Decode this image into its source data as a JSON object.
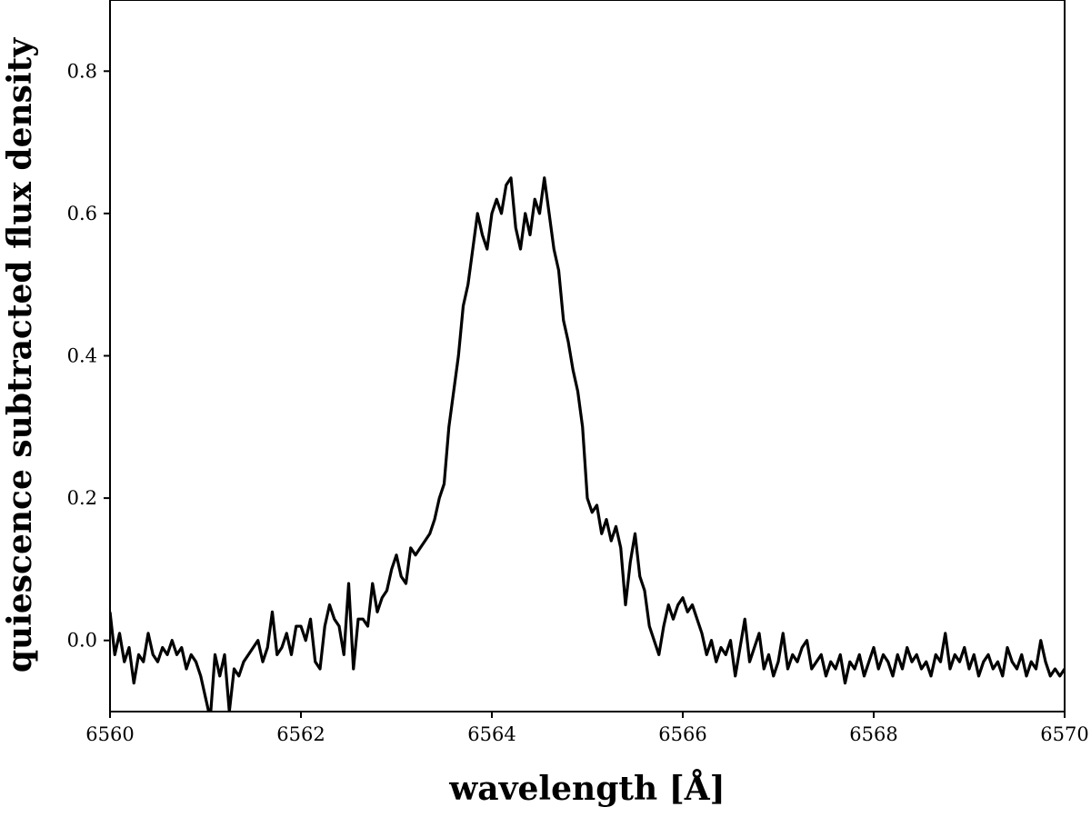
{
  "chart_data": {
    "type": "line",
    "title": "",
    "xlabel": "wavelength [Å]",
    "ylabel": "quiescence subtracted flux density",
    "xlim": [
      6560,
      6570
    ],
    "ylim": [
      -0.1,
      0.9
    ],
    "x_ticks": [
      6560,
      6562,
      6564,
      6566,
      6568,
      6570
    ],
    "x_tick_labels": [
      "6560",
      "6562",
      "6564",
      "6566",
      "6568",
      "6570"
    ],
    "y_ticks": [
      0.0,
      0.2,
      0.4,
      0.6,
      0.8
    ],
    "y_tick_labels": [
      "0.0",
      "0.2",
      "0.4",
      "0.6",
      "0.8"
    ],
    "grid": false,
    "legend": false,
    "line_color": "#000000",
    "series": [
      {
        "x": [
          6560.0,
          6560.05,
          6560.1,
          6560.15,
          6560.2,
          6560.25,
          6560.3,
          6560.35,
          6560.4,
          6560.45,
          6560.5,
          6560.55,
          6560.6,
          6560.65,
          6560.7,
          6560.75,
          6560.8,
          6560.85,
          6560.9,
          6560.95,
          6561.0,
          6561.05,
          6561.1,
          6561.15,
          6561.2,
          6561.25,
          6561.3,
          6561.35,
          6561.4,
          6561.45,
          6561.5,
          6561.55,
          6561.6,
          6561.65,
          6561.7,
          6561.75,
          6561.8,
          6561.85,
          6561.9,
          6561.95,
          6562.0,
          6562.05,
          6562.1,
          6562.15,
          6562.2,
          6562.25,
          6562.3,
          6562.35,
          6562.4,
          6562.45,
          6562.5,
          6562.55,
          6562.6,
          6562.65,
          6562.7,
          6562.75,
          6562.8,
          6562.85,
          6562.9,
          6562.95,
          6563.0,
          6563.05,
          6563.1,
          6563.15,
          6563.2,
          6563.25,
          6563.3,
          6563.35,
          6563.4,
          6563.45,
          6563.5,
          6563.55,
          6563.6,
          6563.65,
          6563.7,
          6563.75,
          6563.8,
          6563.85,
          6563.9,
          6563.95,
          6564.0,
          6564.05,
          6564.1,
          6564.15,
          6564.2,
          6564.25,
          6564.3,
          6564.35,
          6564.4,
          6564.45,
          6564.5,
          6564.55,
          6564.6,
          6564.65,
          6564.7,
          6564.75,
          6564.8,
          6564.85,
          6564.9,
          6564.95,
          6565.0,
          6565.05,
          6565.1,
          6565.15,
          6565.2,
          6565.25,
          6565.3,
          6565.35,
          6565.4,
          6565.45,
          6565.5,
          6565.55,
          6565.6,
          6565.65,
          6565.7,
          6565.75,
          6565.8,
          6565.85,
          6565.9,
          6565.95,
          6566.0,
          6566.05,
          6566.1,
          6566.15,
          6566.2,
          6566.25,
          6566.3,
          6566.35,
          6566.4,
          6566.45,
          6566.5,
          6566.55,
          6566.6,
          6566.65,
          6566.7,
          6566.75,
          6566.8,
          6566.85,
          6566.9,
          6566.95,
          6567.0,
          6567.05,
          6567.1,
          6567.15,
          6567.2,
          6567.25,
          6567.3,
          6567.35,
          6567.4,
          6567.45,
          6567.5,
          6567.55,
          6567.6,
          6567.65,
          6567.7,
          6567.75,
          6567.8,
          6567.85,
          6567.9,
          6567.95,
          6568.0,
          6568.05,
          6568.1,
          6568.15,
          6568.2,
          6568.25,
          6568.3,
          6568.35,
          6568.4,
          6568.45,
          6568.5,
          6568.55,
          6568.6,
          6568.65,
          6568.7,
          6568.75,
          6568.8,
          6568.85,
          6568.9,
          6568.95,
          6569.0,
          6569.05,
          6569.1,
          6569.15,
          6569.2,
          6569.25,
          6569.3,
          6569.35,
          6569.4,
          6569.45,
          6569.5,
          6569.55,
          6569.6,
          6569.65,
          6569.7,
          6569.75,
          6569.8,
          6569.85,
          6569.9,
          6569.95,
          6570.0
        ],
        "y": [
          0.04,
          -0.02,
          0.01,
          -0.03,
          -0.01,
          -0.06,
          -0.02,
          -0.03,
          0.01,
          -0.02,
          -0.03,
          -0.01,
          -0.02,
          0.0,
          -0.02,
          -0.01,
          -0.04,
          -0.02,
          -0.03,
          -0.05,
          -0.08,
          -0.11,
          -0.02,
          -0.05,
          -0.02,
          -0.1,
          -0.04,
          -0.05,
          -0.03,
          -0.02,
          -0.01,
          0.0,
          -0.03,
          -0.01,
          0.04,
          -0.02,
          -0.01,
          0.01,
          -0.02,
          0.02,
          0.02,
          0.0,
          0.03,
          -0.03,
          -0.04,
          0.02,
          0.05,
          0.03,
          0.02,
          -0.02,
          0.08,
          -0.04,
          0.03,
          0.03,
          0.02,
          0.08,
          0.04,
          0.06,
          0.07,
          0.1,
          0.12,
          0.09,
          0.08,
          0.13,
          0.12,
          0.13,
          0.14,
          0.15,
          0.17,
          0.2,
          0.22,
          0.3,
          0.35,
          0.4,
          0.47,
          0.5,
          0.55,
          0.6,
          0.57,
          0.55,
          0.6,
          0.62,
          0.6,
          0.64,
          0.65,
          0.58,
          0.55,
          0.6,
          0.57,
          0.62,
          0.6,
          0.65,
          0.6,
          0.55,
          0.52,
          0.45,
          0.42,
          0.38,
          0.35,
          0.3,
          0.2,
          0.18,
          0.19,
          0.15,
          0.17,
          0.14,
          0.16,
          0.13,
          0.05,
          0.11,
          0.15,
          0.09,
          0.07,
          0.02,
          0.0,
          -0.02,
          0.02,
          0.05,
          0.03,
          0.05,
          0.06,
          0.04,
          0.05,
          0.03,
          0.01,
          -0.02,
          0.0,
          -0.03,
          -0.01,
          -0.02,
          0.0,
          -0.05,
          -0.01,
          0.03,
          -0.03,
          -0.01,
          0.01,
          -0.04,
          -0.02,
          -0.05,
          -0.03,
          0.01,
          -0.04,
          -0.02,
          -0.03,
          -0.01,
          0.0,
          -0.04,
          -0.03,
          -0.02,
          -0.05,
          -0.03,
          -0.04,
          -0.02,
          -0.06,
          -0.03,
          -0.04,
          -0.02,
          -0.05,
          -0.03,
          -0.01,
          -0.04,
          -0.02,
          -0.03,
          -0.05,
          -0.02,
          -0.04,
          -0.01,
          -0.03,
          -0.02,
          -0.04,
          -0.03,
          -0.05,
          -0.02,
          -0.03,
          0.01,
          -0.04,
          -0.02,
          -0.03,
          -0.01,
          -0.04,
          -0.02,
          -0.05,
          -0.03,
          -0.02,
          -0.04,
          -0.03,
          -0.05,
          -0.01,
          -0.03,
          -0.04,
          -0.02,
          -0.05,
          -0.03,
          -0.04,
          0.0,
          -0.03,
          -0.05,
          -0.04,
          -0.05,
          -0.04
        ]
      }
    ]
  }
}
